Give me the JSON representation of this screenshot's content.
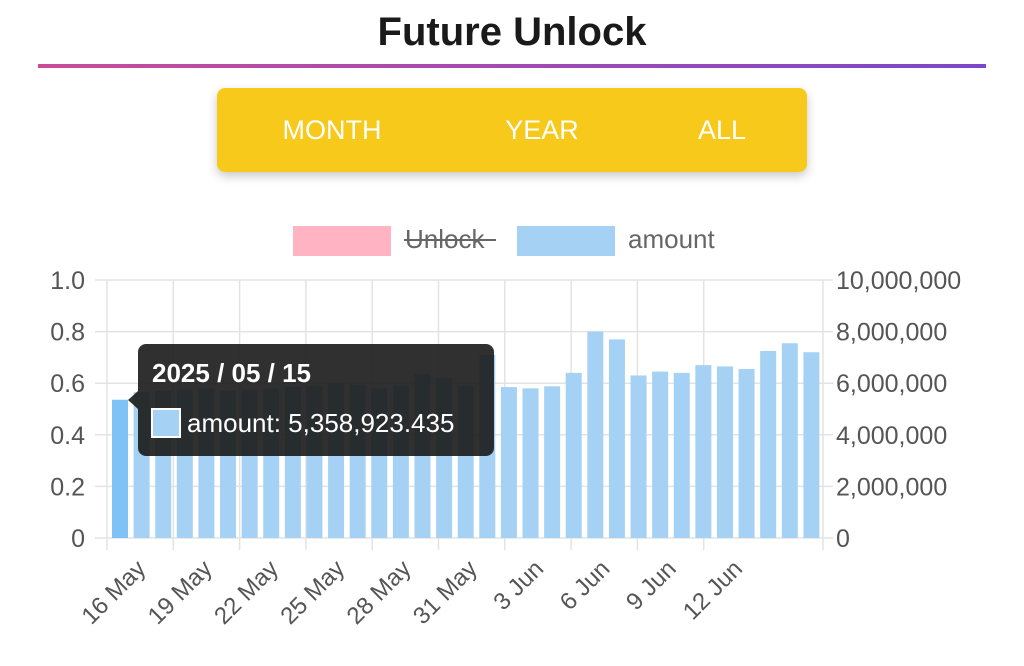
{
  "header": {
    "title": "Future Unlock"
  },
  "tabs": [
    {
      "label": "MONTH"
    },
    {
      "label": "YEAR"
    },
    {
      "label": "ALL"
    }
  ],
  "colors": {
    "accent_start": "#c94c9a",
    "accent_end": "#7b48c9",
    "tab_background": "#f7c91b",
    "bar": "#a5d2f4",
    "bar_active": "#7ec2f6",
    "unlock": "#ffb3c3"
  },
  "chart_data": {
    "type": "bar",
    "title": "",
    "legend": [
      {
        "name": "Unlock",
        "color": "#ffb3c3",
        "hidden": true
      },
      {
        "name": "amount",
        "color": "#a5d2f4",
        "hidden": false
      }
    ],
    "x_tick_labels": [
      "16 May",
      "19 May",
      "22 May",
      "25 May",
      "28 May",
      "31 May",
      "3 Jun",
      "6 Jun",
      "9 Jun",
      "12 Jun"
    ],
    "y_left": {
      "ylim": [
        0,
        1.0
      ],
      "ticks": [
        "1.0",
        "0.8",
        "0.6",
        "0.4",
        "0.2",
        "0"
      ]
    },
    "y_right": {
      "ylim": [
        0,
        10000000
      ],
      "ticks": [
        "10,000,000",
        "8,000,000",
        "6,000,000",
        "4,000,000",
        "2,000,000",
        "0"
      ]
    },
    "series": [
      {
        "name": "amount",
        "values": [
          5358923.435,
          5650000,
          5700000,
          5750000,
          5800000,
          5700000,
          5750000,
          5800000,
          5850000,
          5900000,
          6000000,
          5950000,
          5800000,
          5900000,
          6350000,
          6200000,
          5900000,
          7100000,
          5850000,
          5800000,
          5880000,
          6400000,
          8000000,
          7700000,
          6300000,
          6450000,
          6400000,
          6700000,
          6650000,
          6550000,
          7250000,
          7550000,
          7200000
        ]
      }
    ],
    "tooltip": {
      "title": "2025 / 05 / 15",
      "label": "amount: 5,358,923.435",
      "active_index": 0
    }
  }
}
